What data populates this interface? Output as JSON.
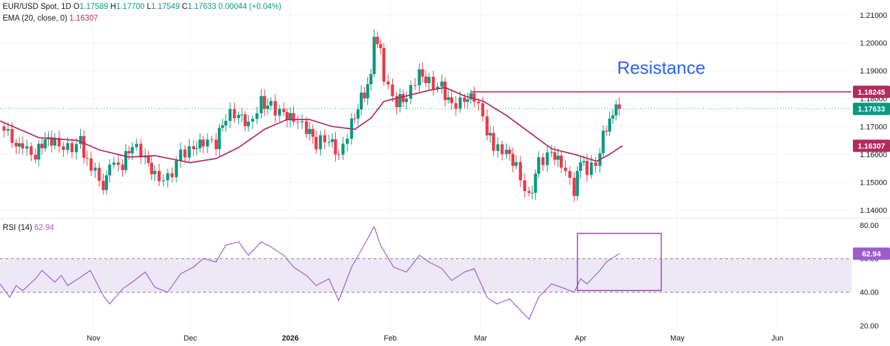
{
  "header": {
    "symbol": "EUR/USD Spot, 1D",
    "o_label": "O",
    "o_value": "1.17589",
    "h_label": "H",
    "h_value": "1.17700",
    "l_label": "L",
    "l_value": "1.17549",
    "c_label": "C",
    "c_value": "1.17633",
    "change": "0.00044 (+0.04%)",
    "ema_label": "EMA (20, close, 0)",
    "ema_value": "1.16307",
    "rsi_label": "RSI (14)",
    "rsi_value": "62.94"
  },
  "colors": {
    "up": "#089981",
    "down": "#f23645",
    "ema": "#b22b5c",
    "rsi": "#9c5ccf",
    "rsi_band": "#ede7f6",
    "box": "#a53dbd",
    "annotation": "#2962ff",
    "grid": "#f0f3fa",
    "axis_text": "#131722"
  },
  "chart_data": [
    {
      "type": "candlestick",
      "title": "EUR/USD Spot, 1D",
      "ylim": [
        1.137,
        1.213
      ],
      "price_ticks": [
        "1.21000",
        "1.20000",
        "1.19000",
        "1.18000",
        "1.17000",
        "1.16000",
        "1.15000",
        "1.14000"
      ],
      "grid": true,
      "x_labels": [
        {
          "label": "Nov",
          "date": "2025-11-01",
          "bold": false
        },
        {
          "label": "Dec",
          "date": "2025-12-01",
          "bold": false
        },
        {
          "label": "2026",
          "date": "2026-01-01",
          "bold": true
        },
        {
          "label": "Feb",
          "date": "2026-02-01",
          "bold": false
        },
        {
          "label": "Mar",
          "date": "2026-03-01",
          "bold": false
        },
        {
          "label": "Apr",
          "date": "2026-04-01",
          "bold": false
        },
        {
          "label": "May",
          "date": "2026-05-01",
          "bold": false
        },
        {
          "label": "Jun",
          "date": "2026-06-01",
          "bold": false
        }
      ],
      "x_range": [
        "2025-10-03",
        "2026-06-24"
      ],
      "ohlc_close_path": [
        [
          "2025-10-03",
          1.17
        ],
        [
          "2025-10-08",
          1.164
        ],
        [
          "2025-10-10",
          1.161
        ],
        [
          "2025-10-14",
          1.16
        ],
        [
          "2025-10-17",
          1.166
        ],
        [
          "2025-10-20",
          1.165
        ],
        [
          "2025-10-24",
          1.162
        ],
        [
          "2025-10-28",
          1.1645
        ],
        [
          "2025-10-30",
          1.157
        ],
        [
          "2025-11-04",
          1.149
        ],
        [
          "2025-11-06",
          1.1545
        ],
        [
          "2025-11-10",
          1.1565
        ],
        [
          "2025-11-13",
          1.164
        ],
        [
          "2025-11-17",
          1.1595
        ],
        [
          "2025-11-20",
          1.1525
        ],
        [
          "2025-11-24",
          1.151
        ],
        [
          "2025-11-28",
          1.16
        ],
        [
          "2025-12-02",
          1.1615
        ],
        [
          "2025-12-05",
          1.164
        ],
        [
          "2025-12-09",
          1.164
        ],
        [
          "2025-12-12",
          1.174
        ],
        [
          "2025-12-16",
          1.175
        ],
        [
          "2025-12-19",
          1.171
        ],
        [
          "2025-12-23",
          1.179
        ],
        [
          "2025-12-26",
          1.177
        ],
        [
          "2025-12-30",
          1.174
        ],
        [
          "2026-01-02",
          1.172
        ],
        [
          "2026-01-06",
          1.169
        ],
        [
          "2026-01-09",
          1.164
        ],
        [
          "2026-01-13",
          1.166
        ],
        [
          "2026-01-16",
          1.16
        ],
        [
          "2026-01-20",
          1.1715
        ],
        [
          "2026-01-23",
          1.18
        ],
        [
          "2026-01-26",
          1.187
        ],
        [
          "2026-01-27",
          1.204
        ],
        [
          "2026-01-29",
          1.196
        ],
        [
          "2026-01-30",
          1.185
        ],
        [
          "2026-02-03",
          1.179
        ],
        [
          "2026-02-06",
          1.181
        ],
        [
          "2026-02-10",
          1.19
        ],
        [
          "2026-02-13",
          1.186
        ],
        [
          "2026-02-17",
          1.184
        ],
        [
          "2026-02-20",
          1.177
        ],
        [
          "2026-02-24",
          1.179
        ],
        [
          "2026-02-27",
          1.1805
        ],
        [
          "2026-03-03",
          1.169
        ],
        [
          "2026-03-05",
          1.162
        ],
        [
          "2026-03-09",
          1.162
        ],
        [
          "2026-03-12",
          1.156
        ],
        [
          "2026-03-16",
          1.144
        ],
        [
          "2026-03-19",
          1.157
        ],
        [
          "2026-03-23",
          1.16
        ],
        [
          "2026-03-26",
          1.156
        ],
        [
          "2026-03-30",
          1.147
        ],
        [
          "2026-04-01",
          1.157
        ],
        [
          "2026-04-03",
          1.154
        ],
        [
          "2026-04-07",
          1.16
        ],
        [
          "2026-04-08",
          1.169
        ],
        [
          "2026-04-09",
          1.17
        ],
        [
          "2026-04-10",
          1.175
        ],
        [
          "2026-04-13",
          1.1763
        ]
      ]
    },
    {
      "type": "line",
      "name": "EMA (20, close, 0)",
      "last_value": 1.16307,
      "points": [
        [
          "2025-10-03",
          1.172
        ],
        [
          "2025-10-15",
          1.166
        ],
        [
          "2025-10-27",
          1.165
        ],
        [
          "2025-11-03",
          1.1615
        ],
        [
          "2025-11-12",
          1.159
        ],
        [
          "2025-11-20",
          1.1595
        ],
        [
          "2025-12-01",
          1.157
        ],
        [
          "2025-12-09",
          1.1585
        ],
        [
          "2025-12-16",
          1.1625
        ],
        [
          "2025-12-24",
          1.169
        ],
        [
          "2025-12-31",
          1.1725
        ],
        [
          "2026-01-07",
          1.1725
        ],
        [
          "2026-01-14",
          1.17
        ],
        [
          "2026-01-21",
          1.169
        ],
        [
          "2026-01-26",
          1.173
        ],
        [
          "2026-01-30",
          1.179
        ],
        [
          "2026-02-06",
          1.181
        ],
        [
          "2026-02-13",
          1.183
        ],
        [
          "2026-02-18",
          1.184
        ],
        [
          "2026-02-24",
          1.181
        ],
        [
          "2026-03-02",
          1.179
        ],
        [
          "2026-03-09",
          1.174
        ],
        [
          "2026-03-16",
          1.168
        ],
        [
          "2026-03-23",
          1.162
        ],
        [
          "2026-03-30",
          1.16
        ],
        [
          "2026-04-06",
          1.1575
        ],
        [
          "2026-04-10",
          1.16
        ],
        [
          "2026-04-14",
          1.1631
        ]
      ]
    },
    {
      "type": "hline",
      "name": "Resistance",
      "y": 1.18245,
      "x_start": "2026-02-26",
      "label": "Resistance"
    },
    {
      "type": "line",
      "name": "RSI (14)",
      "ylim": [
        17,
        84
      ],
      "ticks": [
        "80.00",
        "60.00",
        "40.00",
        "20.00"
      ],
      "band": [
        40,
        60
      ],
      "last_value": 62.94,
      "points": [
        [
          "2025-10-03",
          45
        ],
        [
          "2025-10-06",
          37
        ],
        [
          "2025-10-08",
          44
        ],
        [
          "2025-10-10",
          41
        ],
        [
          "2025-10-14",
          48
        ],
        [
          "2025-10-16",
          53
        ],
        [
          "2025-10-20",
          46
        ],
        [
          "2025-10-22",
          50
        ],
        [
          "2025-10-24",
          44
        ],
        [
          "2025-10-28",
          49
        ],
        [
          "2025-10-31",
          53
        ],
        [
          "2025-11-04",
          38
        ],
        [
          "2025-11-06",
          33
        ],
        [
          "2025-11-10",
          42
        ],
        [
          "2025-11-13",
          46
        ],
        [
          "2025-11-17",
          52
        ],
        [
          "2025-11-20",
          43
        ],
        [
          "2025-11-24",
          40
        ],
        [
          "2025-11-28",
          51
        ],
        [
          "2025-12-02",
          55
        ],
        [
          "2025-12-05",
          60
        ],
        [
          "2025-12-09",
          58
        ],
        [
          "2025-12-12",
          68
        ],
        [
          "2025-12-16",
          70
        ],
        [
          "2025-12-19",
          62
        ],
        [
          "2025-12-23",
          70
        ],
        [
          "2025-12-26",
          67
        ],
        [
          "2025-12-30",
          62
        ],
        [
          "2026-01-02",
          55
        ],
        [
          "2026-01-06",
          50
        ],
        [
          "2026-01-09",
          44
        ],
        [
          "2026-01-13",
          48
        ],
        [
          "2026-01-16",
          35
        ],
        [
          "2026-01-20",
          55
        ],
        [
          "2026-01-23",
          65
        ],
        [
          "2026-01-27",
          79
        ],
        [
          "2026-01-29",
          68
        ],
        [
          "2026-02-02",
          55
        ],
        [
          "2026-02-06",
          52
        ],
        [
          "2026-02-10",
          62
        ],
        [
          "2026-02-13",
          58
        ],
        [
          "2026-02-17",
          54
        ],
        [
          "2026-02-20",
          47
        ],
        [
          "2026-02-24",
          52
        ],
        [
          "2026-02-27",
          54
        ],
        [
          "2026-03-03",
          37
        ],
        [
          "2026-03-06",
          33
        ],
        [
          "2026-03-10",
          36
        ],
        [
          "2026-03-13",
          30
        ],
        [
          "2026-03-16",
          24
        ],
        [
          "2026-03-19",
          37
        ],
        [
          "2026-03-23",
          45
        ],
        [
          "2026-03-26",
          43
        ],
        [
          "2026-03-30",
          40
        ],
        [
          "2026-04-01",
          48
        ],
        [
          "2026-04-03",
          45
        ],
        [
          "2026-04-07",
          53
        ],
        [
          "2026-04-09",
          58
        ],
        [
          "2026-04-13",
          63
        ]
      ]
    }
  ]
}
